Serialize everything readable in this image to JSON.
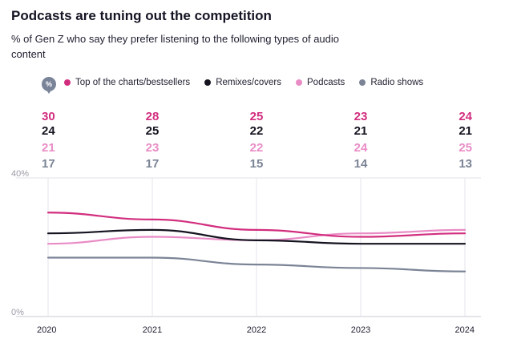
{
  "header": {
    "title": "Podcasts are tuning out the competition",
    "subtitle": "% of Gen Z who say they prefer listening to the following types of audio content"
  },
  "badge": "%",
  "chart_data": {
    "type": "line",
    "title": "Podcasts are tuning out the competition",
    "subtitle": "% of Gen Z who say they prefer listening to the following types of audio content",
    "x": [
      "2020",
      "2021",
      "2022",
      "2023",
      "2024"
    ],
    "ylim": [
      0,
      40
    ],
    "yticks": [
      {
        "value": 0,
        "label": "0%"
      },
      {
        "value": 40,
        "label": "40%"
      }
    ],
    "legend_position": "top-left",
    "grid": true,
    "series": [
      {
        "name": "Top of the charts/bestsellers",
        "color": "#d22e7e",
        "values": [
          30,
          28,
          25,
          23,
          24
        ]
      },
      {
        "name": "Remixes/covers",
        "color": "#15131f",
        "values": [
          24,
          25,
          22,
          21,
          21
        ]
      },
      {
        "name": "Podcasts",
        "color": "#e98cc6",
        "values": [
          21,
          23,
          22,
          24,
          25
        ]
      },
      {
        "name": "Radio shows",
        "color": "#7b8496",
        "values": [
          17,
          17,
          15,
          14,
          13
        ]
      }
    ]
  }
}
